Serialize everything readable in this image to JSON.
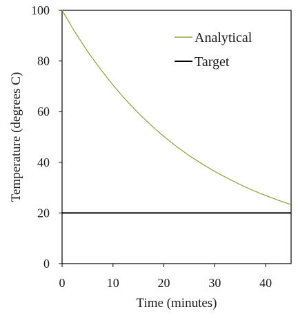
{
  "chart_data": {
    "type": "line",
    "title": "",
    "xlabel": "Time (minutes)",
    "ylabel": "Temperature (degrees C)",
    "xlim": [
      0,
      45
    ],
    "ylim": [
      0,
      100
    ],
    "xticks": [
      0,
      10,
      20,
      30,
      40
    ],
    "yticks": [
      0,
      20,
      40,
      60,
      80,
      100
    ],
    "grid": false,
    "legend_position": "top-right",
    "series": [
      {
        "name": "Analytical",
        "color": "#8fa64a",
        "x": [
          0,
          2.5,
          5,
          7.5,
          10,
          12.5,
          15,
          17.5,
          20,
          22.5,
          25,
          27.5,
          30,
          32.5,
          35,
          37.5,
          40,
          42.5,
          45
        ],
        "y": [
          100,
          91.5,
          83.8,
          76.9,
          70.5,
          64.7,
          59.4,
          54.6,
          50.2,
          46.2,
          42.6,
          39.4,
          36.4,
          33.7,
          31.2,
          28.9,
          26.9,
          25.0,
          23.3
        ]
      },
      {
        "name": "Target",
        "color": "#000000",
        "x": [
          0,
          45
        ],
        "y": [
          20,
          20
        ]
      }
    ]
  }
}
